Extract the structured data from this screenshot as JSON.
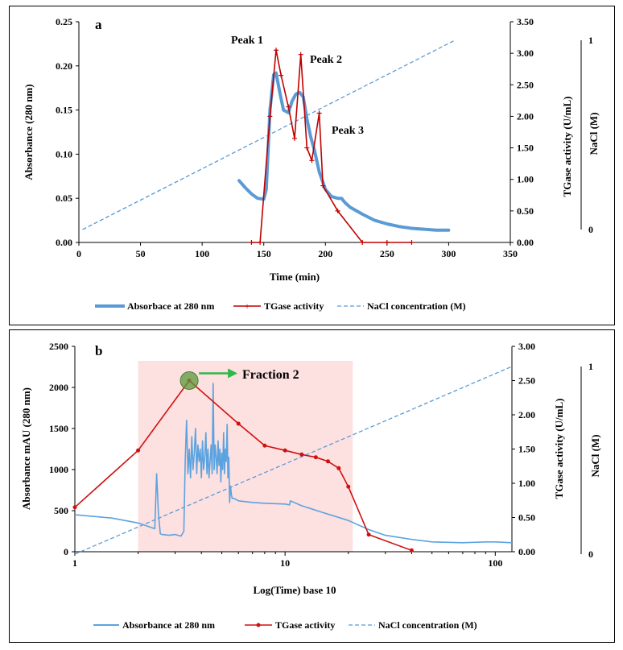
{
  "colors": {
    "absorbance": "#5b9bd5",
    "absorbance_b": "#5ba3e0",
    "tgase": "#c00000",
    "tgase_b": "#d01010",
    "nacl": "#5b9bd5",
    "shade": "#fde0e0",
    "arrow": "#2eb84b",
    "marker": "#5a9a3c"
  },
  "chart_data": [
    {
      "type": "line",
      "panel_label": "a",
      "xlabel": "Time (min)",
      "ylabel": "Absorbance (280 nm)",
      "y2label": "TGase activity (U/mL)",
      "y3label": "NaCl (M)",
      "xlim": [
        0,
        350
      ],
      "ylim": [
        0,
        0.25
      ],
      "y2lim": [
        0,
        3.5
      ],
      "y3lim": [
        0,
        1
      ],
      "x_ticks": [
        "0",
        "50",
        "100",
        "150",
        "200",
        "250",
        "300",
        "350"
      ],
      "y_ticks": [
        "0.00",
        "0.05",
        "0.10",
        "0.15",
        "0.20",
        "0.25"
      ],
      "y2_ticks": [
        "0.00",
        "0.50",
        "1.00",
        "1.50",
        "2.00",
        "2.50",
        "3.00",
        "3.50"
      ],
      "y3_ticks": [
        "0",
        "1"
      ],
      "annotations": [
        "Peak 1",
        "Peak 2",
        "Peak 3"
      ],
      "legend": [
        "Absorbace at 280 nm",
        "TGase activity",
        "NaCl concentration (M)"
      ],
      "series": [
        {
          "name": "Absorbace at 280 nm",
          "axis": "left",
          "x": [
            130,
            135,
            140,
            145,
            150,
            152,
            155,
            158,
            160,
            163,
            166,
            170,
            173,
            176,
            179,
            182,
            185,
            188,
            191,
            195,
            200,
            205,
            210,
            213,
            216,
            220,
            230,
            240,
            250,
            260,
            270,
            280,
            290,
            300
          ],
          "y": [
            0.07,
            0.062,
            0.055,
            0.05,
            0.049,
            0.06,
            0.15,
            0.19,
            0.192,
            0.17,
            0.15,
            0.147,
            0.16,
            0.168,
            0.17,
            0.165,
            0.14,
            0.12,
            0.105,
            0.08,
            0.06,
            0.052,
            0.05,
            0.05,
            0.045,
            0.04,
            0.032,
            0.025,
            0.021,
            0.018,
            0.016,
            0.015,
            0.014,
            0.014
          ]
        },
        {
          "name": "TGase activity",
          "axis": "right",
          "x": [
            140,
            147,
            155,
            160,
            164,
            170,
            175,
            180,
            185,
            189,
            195,
            198,
            210,
            230,
            250,
            270
          ],
          "y": [
            0,
            0,
            2.0,
            3.05,
            2.65,
            2.15,
            1.65,
            2.98,
            1.5,
            1.3,
            2.05,
            0.9,
            0.5,
            0,
            0,
            0
          ]
        },
        {
          "name": "NaCl concentration (M)",
          "axis": "nacl",
          "x": [
            3,
            305
          ],
          "y": [
            0,
            1
          ]
        }
      ]
    },
    {
      "type": "line",
      "panel_label": "b",
      "xlabel": "Log(Time) base 10",
      "ylabel": "Absorbance mAU (280 nm)",
      "y2label": "TGase activity (U/mL)",
      "y3label": "NaCl (M)",
      "xscale": "log",
      "xlim": [
        1,
        120
      ],
      "ylim": [
        0,
        2500
      ],
      "y2lim": [
        0,
        3
      ],
      "y3lim": [
        0,
        1
      ],
      "x_ticks": [
        "1",
        "10",
        "100"
      ],
      "y_ticks": [
        "0",
        "500",
        "1000",
        "1500",
        "2000",
        "2500"
      ],
      "y2_ticks": [
        "0.00",
        "0.50",
        "1.00",
        "1.50",
        "2.00",
        "2.50",
        "3.00"
      ],
      "y3_ticks": [
        "0",
        "1"
      ],
      "annotations": [
        "Fraction 2"
      ],
      "shaded_region_x": [
        2,
        21
      ],
      "legend": [
        "Absorbance at 280 nm",
        "TGase activity",
        "NaCl concentration (M)"
      ],
      "series": [
        {
          "name": "Absorbance at 280 nm",
          "axis": "left",
          "x": [
            1,
            1.5,
            2,
            2.4,
            2.45,
            2.5,
            2.55,
            2.6,
            2.8,
            3.0,
            3.2,
            3.3,
            3.35,
            3.4,
            3.45,
            3.5,
            3.55,
            3.6,
            3.65,
            3.7,
            3.75,
            3.8,
            3.85,
            3.9,
            3.95,
            4.0,
            4.05,
            4.1,
            4.15,
            4.2,
            4.25,
            4.3,
            4.35,
            4.4,
            4.45,
            4.5,
            4.55,
            4.6,
            4.65,
            4.7,
            4.75,
            4.8,
            4.85,
            4.9,
            4.95,
            5.0,
            5.05,
            5.1,
            5.15,
            5.2,
            5.25,
            5.3,
            5.35,
            5.4,
            5.45,
            5.5,
            5.55,
            5.6,
            5.7,
            5.8,
            6.0,
            7.0,
            8.0,
            10.0,
            10.5,
            10.6,
            12.0,
            15.0,
            20.0,
            25.0,
            30.0,
            40.0,
            50.0,
            70.0,
            90.0,
            100.0,
            120.0
          ],
          "y": [
            450,
            410,
            350,
            280,
            950,
            450,
            220,
            210,
            200,
            210,
            190,
            250,
            1100,
            1600,
            950,
            1250,
            900,
            1400,
            1000,
            1200,
            1500,
            950,
            1300,
            1100,
            1250,
            900,
            1350,
            1000,
            1150,
            1450,
            950,
            1250,
            900,
            1100,
            1300,
            950,
            2050,
            1000,
            1300,
            1150,
            950,
            1350,
            1050,
            1250,
            850,
            1200,
            1000,
            1450,
            950,
            1250,
            1100,
            1550,
            900,
            1150,
            600,
            800,
            700,
            650,
            650,
            640,
            620,
            600,
            590,
            580,
            570,
            620,
            560,
            480,
            380,
            270,
            200,
            150,
            120,
            110,
            120,
            120,
            110
          ]
        },
        {
          "name": "TGase activity",
          "axis": "right",
          "x": [
            1,
            2,
            3.5,
            6,
            8,
            10,
            12,
            14,
            16,
            18,
            20,
            25,
            40
          ],
          "y": [
            0.65,
            1.48,
            2.5,
            1.87,
            1.55,
            1.48,
            1.42,
            1.38,
            1.32,
            1.22,
            0.95,
            0.25,
            0.02
          ]
        },
        {
          "name": "NaCl concentration (M)",
          "axis": "nacl",
          "x": [
            1,
            120
          ],
          "y": [
            0,
            1
          ]
        }
      ]
    }
  ]
}
